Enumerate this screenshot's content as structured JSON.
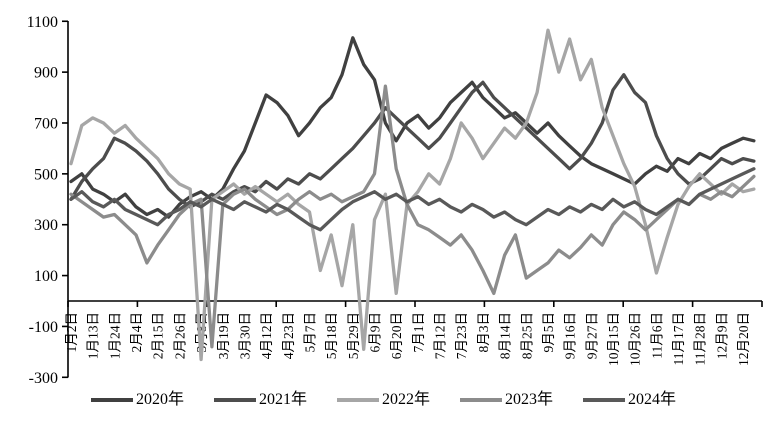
{
  "chart_data": {
    "type": "line",
    "title": "",
    "xlabel": "",
    "ylabel": "",
    "grid": false,
    "legend_position": "bottom",
    "y_axis": {
      "min": -300,
      "max": 1100,
      "tick_interval": 200,
      "tick_labels": [
        "1100",
        "900",
        "700",
        "500",
        "300",
        "100",
        "-100",
        "-300"
      ]
    },
    "categories": [
      "1月2日",
      "1月13日",
      "1月24日",
      "2月4日",
      "2月15日",
      "2月26日",
      "3月8日",
      "3月19日",
      "3月30日",
      "4月12日",
      "4月23日",
      "5月7日",
      "5月18日",
      "5月29日",
      "6月9日",
      "6月20日",
      "7月1日",
      "7月12日",
      "7月23日",
      "8月3日",
      "8月14日",
      "8月25日",
      "9月5日",
      "9月16日",
      "9月27日",
      "10月15日",
      "10月26日",
      "11月6日",
      "11月17日",
      "11月28日",
      "12月9日",
      "12月20日"
    ],
    "x_step": 0.5,
    "x_note": "values sampled every 0.5 category index, 64 points per series spanning the 32 categories",
    "series": [
      {
        "name": "2020年",
        "color": "#404040",
        "values": [
          470,
          500,
          440,
          420,
          390,
          420,
          370,
          340,
          360,
          330,
          380,
          410,
          430,
          400,
          440,
          520,
          590,
          700,
          810,
          780,
          730,
          650,
          700,
          760,
          800,
          890,
          1035,
          930,
          870,
          700,
          630,
          700,
          730,
          680,
          720,
          780,
          820,
          860,
          800,
          760,
          720,
          740,
          700,
          660,
          700,
          650,
          610,
          570,
          540,
          520,
          500,
          480,
          460,
          500,
          530,
          510,
          560,
          540,
          580,
          560,
          600,
          620,
          640,
          630
        ]
      },
      {
        "name": "2021年",
        "color": "#4d4d4d",
        "values": [
          400,
          470,
          520,
          560,
          640,
          620,
          590,
          550,
          500,
          440,
          400,
          370,
          390,
          420,
          400,
          430,
          450,
          430,
          470,
          440,
          480,
          460,
          500,
          480,
          520,
          560,
          600,
          650,
          700,
          760,
          720,
          680,
          640,
          600,
          640,
          700,
          760,
          820,
          860,
          800,
          760,
          720,
          680,
          640,
          600,
          560,
          520,
          560,
          620,
          700,
          830,
          890,
          820,
          780,
          650,
          560,
          500,
          460,
          480,
          520,
          560,
          540,
          560,
          550
        ]
      },
      {
        "name": "2022年",
        "color": "#a6a6a6",
        "values": [
          540,
          690,
          720,
          700,
          660,
          690,
          640,
          600,
          560,
          500,
          460,
          440,
          -230,
          400,
          430,
          460,
          420,
          450,
          420,
          390,
          420,
          380,
          350,
          120,
          260,
          60,
          300,
          -190,
          320,
          420,
          30,
          380,
          430,
          500,
          460,
          560,
          700,
          640,
          560,
          620,
          680,
          640,
          700,
          820,
          1065,
          900,
          1030,
          870,
          950,
          760,
          650,
          540,
          450,
          300,
          110,
          250,
          380,
          450,
          500,
          460,
          420,
          460,
          430,
          440
        ]
      },
      {
        "name": "2023年",
        "color": "#8c8c8c",
        "values": [
          420,
          390,
          360,
          330,
          340,
          300,
          260,
          150,
          220,
          280,
          340,
          380,
          400,
          -180,
          380,
          420,
          440,
          400,
          370,
          340,
          360,
          400,
          430,
          400,
          420,
          390,
          410,
          430,
          500,
          845,
          520,
          380,
          300,
          280,
          250,
          220,
          260,
          200,
          120,
          30,
          180,
          260,
          90,
          120,
          150,
          200,
          170,
          210,
          260,
          220,
          300,
          350,
          320,
          280,
          320,
          360,
          400,
          380,
          420,
          400,
          430,
          410,
          450,
          490
        ]
      },
      {
        "name": "2024年",
        "color": "#595959",
        "values": [
          400,
          430,
          390,
          370,
          400,
          360,
          340,
          320,
          300,
          340,
          360,
          390,
          370,
          400,
          380,
          360,
          390,
          370,
          350,
          380,
          360,
          330,
          300,
          280,
          320,
          360,
          390,
          410,
          430,
          400,
          420,
          390,
          410,
          380,
          400,
          370,
          350,
          380,
          360,
          330,
          350,
          320,
          300,
          330,
          360,
          340,
          370,
          350,
          380,
          360,
          400,
          370,
          390,
          360,
          340,
          370,
          400,
          380,
          420,
          440,
          460,
          480,
          500,
          520
        ]
      }
    ]
  }
}
